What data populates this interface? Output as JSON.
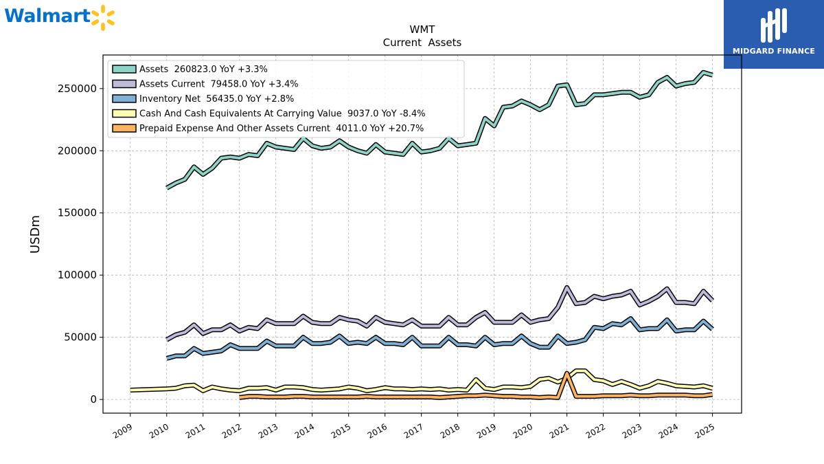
{
  "brand": {
    "left_logo_text": "Walmart",
    "right_logo_text": "MIDGARD FINANCE",
    "walmart_blue": "#0071ce",
    "walmart_yellow": "#ffc220",
    "midgard_bg": "#2a5db0"
  },
  "chart_data": {
    "type": "line",
    "title": "WMT",
    "subtitle": "Current  Assets",
    "ylabel": "USDm",
    "xlabel": "",
    "ylim": [
      -11000,
      277000
    ],
    "xlim": [
      2008.25,
      2025.8
    ],
    "yticks": [
      0,
      50000,
      100000,
      150000,
      200000,
      250000
    ],
    "ytick_labels": [
      "0",
      "50000",
      "100000",
      "150000",
      "200000",
      "250000"
    ],
    "xticks": [
      2009,
      2010,
      2011,
      2012,
      2013,
      2014,
      2015,
      2016,
      2017,
      2018,
      2019,
      2020,
      2021,
      2022,
      2023,
      2024,
      2025
    ],
    "xtick_labels": [
      "2009",
      "2010",
      "2011",
      "2012",
      "2013",
      "2014",
      "2015",
      "2016",
      "2017",
      "2018",
      "2019",
      "2020",
      "2021",
      "2022",
      "2023",
      "2024",
      "2025"
    ],
    "grid": true,
    "legend_position": "top-left",
    "series": [
      {
        "name": "Assets  260823.0 YoY +3.3%",
        "color": "#8dd3c7",
        "x": [
          2010.0,
          2010.25,
          2010.5,
          2010.75,
          2011.0,
          2011.25,
          2011.5,
          2011.75,
          2012.0,
          2012.25,
          2012.5,
          2012.75,
          2013.0,
          2013.25,
          2013.5,
          2013.75,
          2014.0,
          2014.25,
          2014.5,
          2014.75,
          2015.0,
          2015.25,
          2015.5,
          2015.75,
          2016.0,
          2016.25,
          2016.5,
          2016.75,
          2017.0,
          2017.25,
          2017.5,
          2017.75,
          2018.0,
          2018.25,
          2018.5,
          2018.75,
          2019.0,
          2019.25,
          2019.5,
          2019.75,
          2020.0,
          2020.25,
          2020.5,
          2020.75,
          2021.0,
          2021.25,
          2021.5,
          2021.75,
          2022.0,
          2022.25,
          2022.5,
          2022.75,
          2023.0,
          2023.25,
          2023.5,
          2023.75,
          2024.0,
          2024.25,
          2024.5,
          2024.75,
          2025.0
        ],
        "values": [
          170000,
          174000,
          177000,
          187000,
          181000,
          186000,
          194000,
          195000,
          194000,
          197000,
          196000,
          206000,
          203000,
          202000,
          201000,
          210000,
          204000,
          202000,
          203000,
          208000,
          203000,
          200000,
          198000,
          205000,
          199000,
          198000,
          197000,
          206000,
          199000,
          200000,
          202000,
          210000,
          204000,
          205000,
          206000,
          226000,
          220000,
          235000,
          236000,
          240000,
          237000,
          233000,
          237000,
          252000,
          253000,
          237000,
          238000,
          245000,
          245000,
          246000,
          247000,
          247000,
          243000,
          245000,
          255000,
          259000,
          252000,
          254000,
          255000,
          263000,
          260823
        ]
      },
      {
        "name": "Assets Current  79458.0 YoY +3.4%",
        "color": "#bebada",
        "x": [
          2010.0,
          2010.25,
          2010.5,
          2010.75,
          2011.0,
          2011.25,
          2011.5,
          2011.75,
          2012.0,
          2012.25,
          2012.5,
          2012.75,
          2013.0,
          2013.25,
          2013.5,
          2013.75,
          2014.0,
          2014.25,
          2014.5,
          2014.75,
          2015.0,
          2015.25,
          2015.5,
          2015.75,
          2016.0,
          2016.25,
          2016.5,
          2016.75,
          2017.0,
          2017.25,
          2017.5,
          2017.75,
          2018.0,
          2018.25,
          2018.5,
          2018.75,
          2019.0,
          2019.25,
          2019.5,
          2019.75,
          2020.0,
          2020.25,
          2020.5,
          2020.75,
          2021.0,
          2021.25,
          2021.5,
          2021.75,
          2022.0,
          2022.25,
          2022.5,
          2022.75,
          2023.0,
          2023.25,
          2023.5,
          2023.75,
          2024.0,
          2024.25,
          2024.5,
          2024.75,
          2025.0
        ],
        "values": [
          48000,
          52000,
          54000,
          60000,
          53000,
          56000,
          56000,
          60000,
          55000,
          58000,
          57000,
          64000,
          61000,
          61000,
          61000,
          67000,
          62000,
          61000,
          61000,
          66000,
          64000,
          63000,
          59000,
          66000,
          62000,
          61000,
          60000,
          64000,
          59000,
          59000,
          59000,
          66000,
          60000,
          60000,
          66000,
          70000,
          62000,
          62000,
          62000,
          68000,
          62000,
          64000,
          65000,
          74000,
          90000,
          77000,
          78000,
          83000,
          81000,
          83000,
          84000,
          87000,
          76000,
          79000,
          83000,
          89000,
          78000,
          78000,
          77000,
          87000,
          79458
        ]
      },
      {
        "name": "Inventory Net  56435.0 YoY +2.8%",
        "color": "#80b1d3",
        "x": [
          2010.0,
          2010.25,
          2010.5,
          2010.75,
          2011.0,
          2011.25,
          2011.5,
          2011.75,
          2012.0,
          2012.25,
          2012.5,
          2012.75,
          2013.0,
          2013.25,
          2013.5,
          2013.75,
          2014.0,
          2014.25,
          2014.5,
          2014.75,
          2015.0,
          2015.25,
          2015.5,
          2015.75,
          2016.0,
          2016.25,
          2016.5,
          2016.75,
          2017.0,
          2017.25,
          2017.5,
          2017.75,
          2018.0,
          2018.25,
          2018.5,
          2018.75,
          2019.0,
          2019.25,
          2019.5,
          2019.75,
          2020.0,
          2020.25,
          2020.5,
          2020.75,
          2021.0,
          2021.25,
          2021.5,
          2021.75,
          2022.0,
          2022.25,
          2022.5,
          2022.75,
          2023.0,
          2023.25,
          2023.5,
          2023.75,
          2024.0,
          2024.25,
          2024.5,
          2024.75,
          2025.0
        ],
        "values": [
          33000,
          35000,
          35000,
          41000,
          37000,
          38000,
          39000,
          44000,
          41000,
          41000,
          41000,
          47000,
          43000,
          43000,
          43000,
          50000,
          45000,
          45000,
          46000,
          51000,
          45000,
          46000,
          45000,
          50000,
          45000,
          45000,
          44000,
          50000,
          43000,
          43000,
          43000,
          50000,
          44000,
          44000,
          43000,
          50000,
          44000,
          45000,
          45000,
          51000,
          45000,
          42000,
          42000,
          51000,
          45000,
          46000,
          48000,
          58000,
          57000,
          61000,
          60000,
          65000,
          56000,
          57000,
          57000,
          64000,
          55000,
          56000,
          56000,
          63000,
          56435
        ]
      },
      {
        "name": "Cash And Cash Equivalents At Carrying Value  9037.0 YoY -8.4%",
        "color": "#ffffb3",
        "x": [
          2009.0,
          2010.0,
          2010.25,
          2010.5,
          2010.75,
          2011.0,
          2011.25,
          2011.5,
          2011.75,
          2012.0,
          2012.25,
          2012.5,
          2012.75,
          2013.0,
          2013.25,
          2013.5,
          2013.75,
          2014.0,
          2014.25,
          2014.5,
          2014.75,
          2015.0,
          2015.25,
          2015.5,
          2015.75,
          2016.0,
          2016.25,
          2016.5,
          2016.75,
          2017.0,
          2017.25,
          2017.5,
          2017.75,
          2018.0,
          2018.25,
          2018.5,
          2018.75,
          2019.0,
          2019.25,
          2019.5,
          2019.75,
          2020.0,
          2020.25,
          2020.5,
          2020.75,
          2021.0,
          2021.25,
          2021.5,
          2021.75,
          2022.0,
          2022.25,
          2022.5,
          2022.75,
          2023.0,
          2023.25,
          2023.5,
          2023.75,
          2024.0,
          2024.25,
          2024.5,
          2024.75,
          2025.0
        ],
        "values": [
          7500,
          8500,
          9000,
          11000,
          11500,
          7000,
          10000,
          8500,
          7500,
          7000,
          9000,
          9000,
          9500,
          7500,
          10000,
          10000,
          9500,
          8000,
          7500,
          8000,
          8500,
          10000,
          9000,
          7000,
          8000,
          9500,
          8500,
          8500,
          8000,
          8500,
          8000,
          8500,
          7500,
          8000,
          7500,
          16000,
          9000,
          8000,
          10000,
          10000,
          9500,
          10500,
          16000,
          17000,
          14000,
          17000,
          23000,
          23000,
          16000,
          15000,
          12000,
          14500,
          12000,
          9000,
          11000,
          14500,
          13000,
          11000,
          10500,
          10000,
          11000,
          9037
        ]
      },
      {
        "name": "Prepaid Expense And Other Assets Current  4011.0 YoY +20.7%",
        "color": "#fdb462",
        "x": [
          2012.0,
          2012.25,
          2012.5,
          2012.75,
          2013.0,
          2013.25,
          2013.5,
          2013.75,
          2014.0,
          2014.25,
          2014.5,
          2014.75,
          2015.0,
          2015.25,
          2015.5,
          2015.75,
          2016.0,
          2016.25,
          2016.5,
          2016.75,
          2017.0,
          2017.25,
          2017.5,
          2017.75,
          2018.0,
          2018.25,
          2018.5,
          2018.75,
          2019.0,
          2019.25,
          2019.5,
          2019.75,
          2020.0,
          2020.25,
          2020.5,
          2020.75,
          2021.0,
          2021.25,
          2021.5,
          2021.75,
          2022.0,
          2022.25,
          2022.5,
          2022.75,
          2023.0,
          2023.25,
          2023.5,
          2023.75,
          2024.0,
          2024.25,
          2024.5,
          2024.75,
          2025.0
        ],
        "values": [
          1500,
          2500,
          2500,
          2000,
          2000,
          2000,
          2500,
          2500,
          2000,
          2000,
          2000,
          2000,
          2000,
          2000,
          2500,
          2000,
          2000,
          2000,
          2000,
          2000,
          2000,
          2000,
          1500,
          2000,
          2500,
          3000,
          3000,
          3500,
          3000,
          2500,
          2500,
          2000,
          2000,
          1500,
          2000,
          1500,
          21000,
          2500,
          2500,
          2500,
          3000,
          3000,
          3000,
          3500,
          3000,
          3000,
          3500,
          3500,
          3500,
          3500,
          3000,
          3000,
          4011
        ]
      }
    ]
  }
}
